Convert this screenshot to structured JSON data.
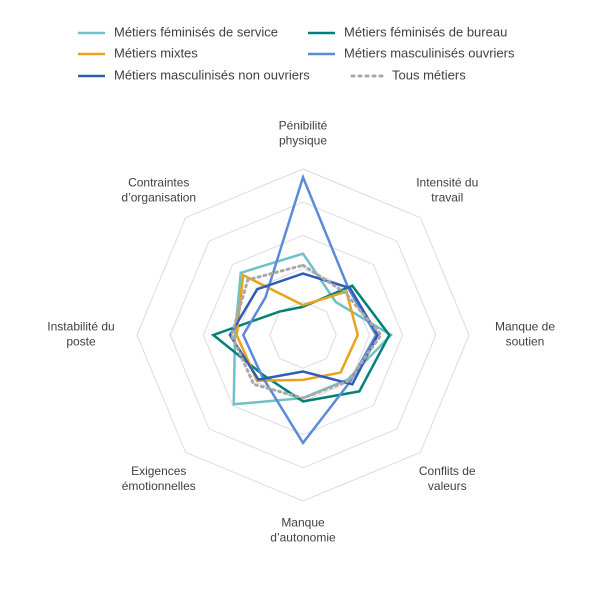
{
  "chart_data": {
    "type": "radar",
    "title": "",
    "axes": [
      [
        "Pénibilité",
        "physique"
      ],
      [
        "Intensité du",
        "travail"
      ],
      [
        "Manque de",
        "soutien"
      ],
      [
        "Conflits de",
        "valeurs"
      ],
      [
        "Manque",
        "d’autonomie"
      ],
      [
        "Exigences",
        "émotionnelles"
      ],
      [
        "Instabilité du",
        "poste"
      ],
      [
        "Contraintes",
        "d’organisation"
      ]
    ],
    "range": [
      0,
      5
    ],
    "grid_levels": 5,
    "legend_position": "top",
    "series": [
      {
        "name": "Métiers féminisés de service",
        "color": "#70C1C6",
        "dash": false,
        "values": [
          2.45,
          1.4,
          2.65,
          1.9,
          1.9,
          2.95,
          2.05,
          2.65
        ]
      },
      {
        "name": "Métiers féminisés de bureau",
        "color": "#00807A",
        "dash": false,
        "values": [
          0.85,
          2.1,
          2.6,
          2.4,
          2.0,
          1.7,
          2.7,
          1.0
        ]
      },
      {
        "name": "Métiers mixtes",
        "color": "#E9A21E",
        "dash": false,
        "values": [
          0.9,
          1.85,
          1.65,
          1.6,
          1.35,
          1.95,
          2.0,
          2.55
        ]
      },
      {
        "name": "Métiers masculinisés ouvriers",
        "color": "#5B8BD6",
        "dash": false,
        "values": [
          4.75,
          1.95,
          2.2,
          2.0,
          3.25,
          1.75,
          1.8,
          1.6
        ]
      },
      {
        "name": "Métiers masculinisés non ouvriers",
        "color": "#2F5CB6",
        "dash": false,
        "values": [
          1.85,
          2.0,
          2.25,
          2.1,
          1.1,
          1.9,
          2.2,
          1.95
        ]
      },
      {
        "name": "Tous métiers",
        "color": "#A8A8A8",
        "dash": true,
        "values": [
          2.1,
          1.8,
          2.35,
          1.95,
          1.9,
          2.1,
          2.15,
          2.35
        ]
      }
    ]
  }
}
